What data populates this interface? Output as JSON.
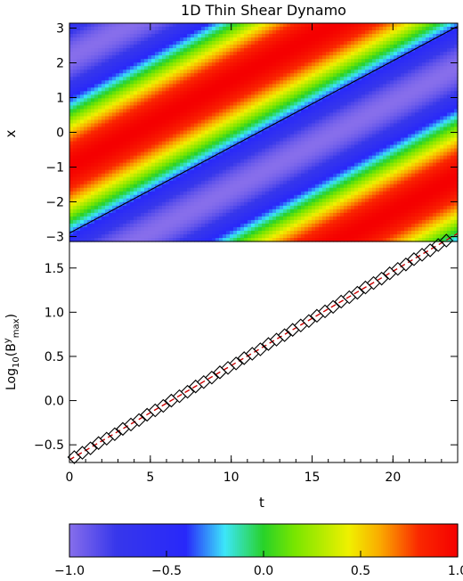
{
  "title": "1D Thin Shear Dynamo",
  "chart_data": [
    {
      "type": "heatmap",
      "title": "1D Thin Shear Dynamo",
      "xlim": [
        0,
        24
      ],
      "ylim": [
        -3.14159,
        3.14159
      ],
      "ylabel": "x",
      "yticks": [
        3,
        2,
        1,
        0,
        -1,
        -2,
        -3
      ],
      "ytick_labels": [
        "3",
        "2",
        "1",
        "0",
        "−1",
        "−2",
        "−3"
      ],
      "field": {
        "description_formula": "cos(x - k*t + x0)",
        "wavenumber": 1,
        "phase_drift_per_t": 0.25,
        "phase_offset": -1.0
      },
      "overlay_line": {
        "color": "#000000",
        "points": [
          [
            0,
            -2.9
          ],
          [
            24,
            3.05
          ]
        ]
      },
      "value_range": [
        -1.0,
        1.0
      ]
    },
    {
      "type": "scatter",
      "xlabel": "t",
      "ylabel": "Log10(B^y_max)",
      "ylabel_parts": {
        "base": "Log",
        "sub": "10",
        "open": "(B",
        "sup": "y",
        "sub2": "max",
        "close": ")"
      },
      "xlim": [
        0,
        24
      ],
      "ylim": [
        -0.7,
        1.8
      ],
      "xticks": [
        0,
        5,
        10,
        15,
        20
      ],
      "xtick_labels": [
        "0",
        "5",
        "10",
        "15",
        "20"
      ],
      "yticks": [
        -0.5,
        0.0,
        0.5,
        1.0,
        1.5
      ],
      "ytick_labels": [
        "−0.5",
        "0.0",
        "0.5",
        "1.0",
        "1.5"
      ],
      "series": [
        {
          "marker": "diamond",
          "color": "#000000",
          "x": [
            0.3,
            0.8,
            1.3,
            1.8,
            2.3,
            2.8,
            3.3,
            3.8,
            4.3,
            4.8,
            5.3,
            5.8,
            6.3,
            6.8,
            7.3,
            7.8,
            8.3,
            8.8,
            9.3,
            9.8,
            10.3,
            10.8,
            11.3,
            11.8,
            12.3,
            12.8,
            13.3,
            13.8,
            14.3,
            14.8,
            15.3,
            15.8,
            16.3,
            16.8,
            17.3,
            17.8,
            18.3,
            18.8,
            19.3,
            19.8,
            20.3,
            20.8,
            21.3,
            21.8,
            22.3,
            22.8,
            23.3,
            23.8
          ],
          "y": [
            -0.64,
            -0.59,
            -0.54,
            -0.48,
            -0.43,
            -0.38,
            -0.32,
            -0.27,
            -0.22,
            -0.16,
            -0.11,
            -0.06,
            0.0,
            0.05,
            0.1,
            0.16,
            0.21,
            0.26,
            0.32,
            0.37,
            0.42,
            0.48,
            0.53,
            0.58,
            0.64,
            0.69,
            0.74,
            0.8,
            0.85,
            0.9,
            0.96,
            1.01,
            1.06,
            1.12,
            1.17,
            1.22,
            1.28,
            1.33,
            1.38,
            1.44,
            1.49,
            1.54,
            1.6,
            1.65,
            1.7,
            1.76,
            1.81,
            1.86
          ]
        }
      ],
      "fit_line": {
        "color": "#cc0000",
        "style": "dashed",
        "points": [
          [
            0,
            -0.67
          ],
          [
            24,
            1.89
          ]
        ]
      }
    },
    {
      "type": "colorbar",
      "range": [
        -1.0,
        1.0
      ],
      "ticks": [
        -1.0,
        -0.5,
        0.0,
        0.5,
        1.0
      ],
      "tick_labels": [
        "−1.0",
        "−0.5",
        "0.0",
        "0.5",
        "1.0"
      ]
    }
  ]
}
